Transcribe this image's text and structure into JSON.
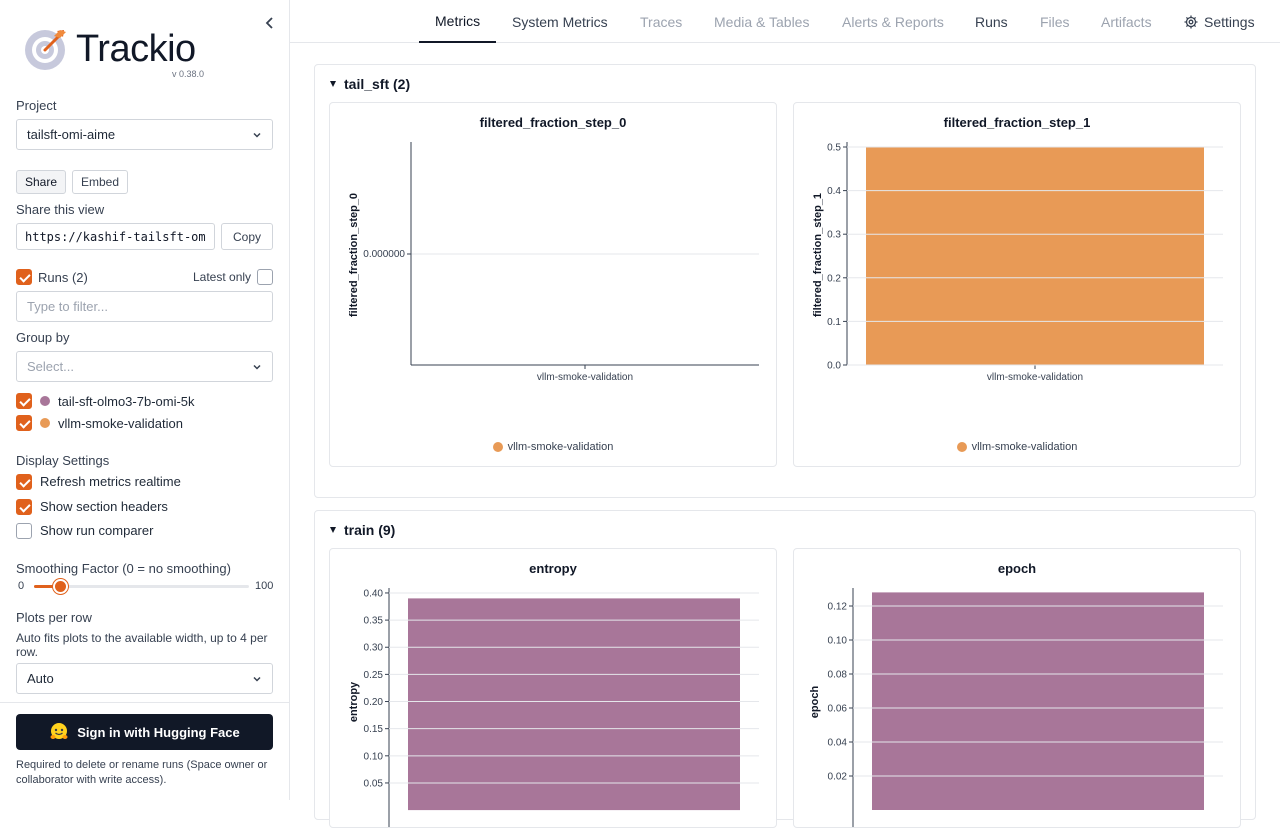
{
  "colors": {
    "accent": "#e0611c",
    "run1": "#a87699",
    "run2": "#e89a56"
  },
  "sidebar": {
    "brand": "Trackio",
    "version": "v 0.38.0",
    "project_label": "Project",
    "project_value": "tailsft-omi-aime",
    "share_tab": "Share",
    "embed_tab": "Embed",
    "share_view_label": "Share this view",
    "share_url": "https://kashif-tailsft-om",
    "copy_label": "Copy",
    "runs_label": "Runs (2)",
    "latest_only_label": "Latest only",
    "filter_placeholder": "Type to filter...",
    "group_by_label": "Group by",
    "group_by_placeholder": "Select...",
    "runs": [
      {
        "name": "tail-sft-olmo3-7b-omi-5k",
        "color": "#a87699",
        "checked": true
      },
      {
        "name": "vllm-smoke-validation",
        "color": "#e89a56",
        "checked": true
      }
    ],
    "display_settings_label": "Display Settings",
    "settings": [
      {
        "label": "Refresh metrics realtime",
        "checked": true
      },
      {
        "label": "Show section headers",
        "checked": true
      },
      {
        "label": "Show run comparer",
        "checked": false
      }
    ],
    "smoothing_label": "Smoothing Factor (0 = no smoothing)",
    "smoothing_min": "0",
    "smoothing_max": "100",
    "smoothing_value": 12,
    "plots_per_row_label": "Plots per row",
    "plots_per_row_help": "Auto fits plots to the available width, up to 4 per row.",
    "plots_per_row_value": "Auto",
    "sign_in_label": "Sign in with Hugging Face",
    "sign_in_note": "Required to delete or rename runs (Space owner or collaborator with write access)."
  },
  "nav": {
    "tabs": [
      "Metrics",
      "System Metrics",
      "Traces",
      "Media & Tables",
      "Alerts & Reports",
      "Runs",
      "Files",
      "Artifacts",
      "Settings"
    ],
    "active": "Metrics"
  },
  "sections": [
    {
      "title": "tail_sft (2)"
    },
    {
      "title": "train (9)"
    }
  ],
  "chart_data": [
    {
      "type": "bar",
      "title": "filtered_fraction_step_0",
      "ylabel": "filtered_fraction_step_0",
      "xlabel": "",
      "categories": [
        "vllm-smoke-validation"
      ],
      "series": [
        {
          "name": "vllm-smoke-validation",
          "values": [
            0.0
          ]
        }
      ],
      "yticks": [
        "0.000000"
      ],
      "legend": [
        "vllm-smoke-validation"
      ]
    },
    {
      "type": "bar",
      "title": "filtered_fraction_step_1",
      "ylabel": "filtered_fraction_step_1",
      "xlabel": "",
      "categories": [
        "vllm-smoke-validation"
      ],
      "series": [
        {
          "name": "vllm-smoke-validation",
          "values": [
            0.5
          ]
        }
      ],
      "ylim": [
        0,
        0.5
      ],
      "yticks": [
        "0.0",
        "0.1",
        "0.2",
        "0.3",
        "0.4",
        "0.5"
      ],
      "legend": [
        "vllm-smoke-validation"
      ]
    },
    {
      "type": "bar",
      "title": "entropy",
      "ylabel": "entropy",
      "xlabel": "",
      "series": [
        {
          "name": "tail-sft-olmo3-7b-omi-5k",
          "values": [
            0.39
          ]
        }
      ],
      "yticks": [
        "0.05",
        "0.10",
        "0.15",
        "0.20",
        "0.25",
        "0.30",
        "0.35",
        "0.40"
      ]
    },
    {
      "type": "bar",
      "title": "epoch",
      "ylabel": "epoch",
      "xlabel": "",
      "series": [
        {
          "name": "tail-sft-olmo3-7b-omi-5k",
          "values": [
            0.128
          ]
        }
      ],
      "yticks": [
        "0.02",
        "0.04",
        "0.06",
        "0.08",
        "0.10",
        "0.12"
      ]
    }
  ]
}
